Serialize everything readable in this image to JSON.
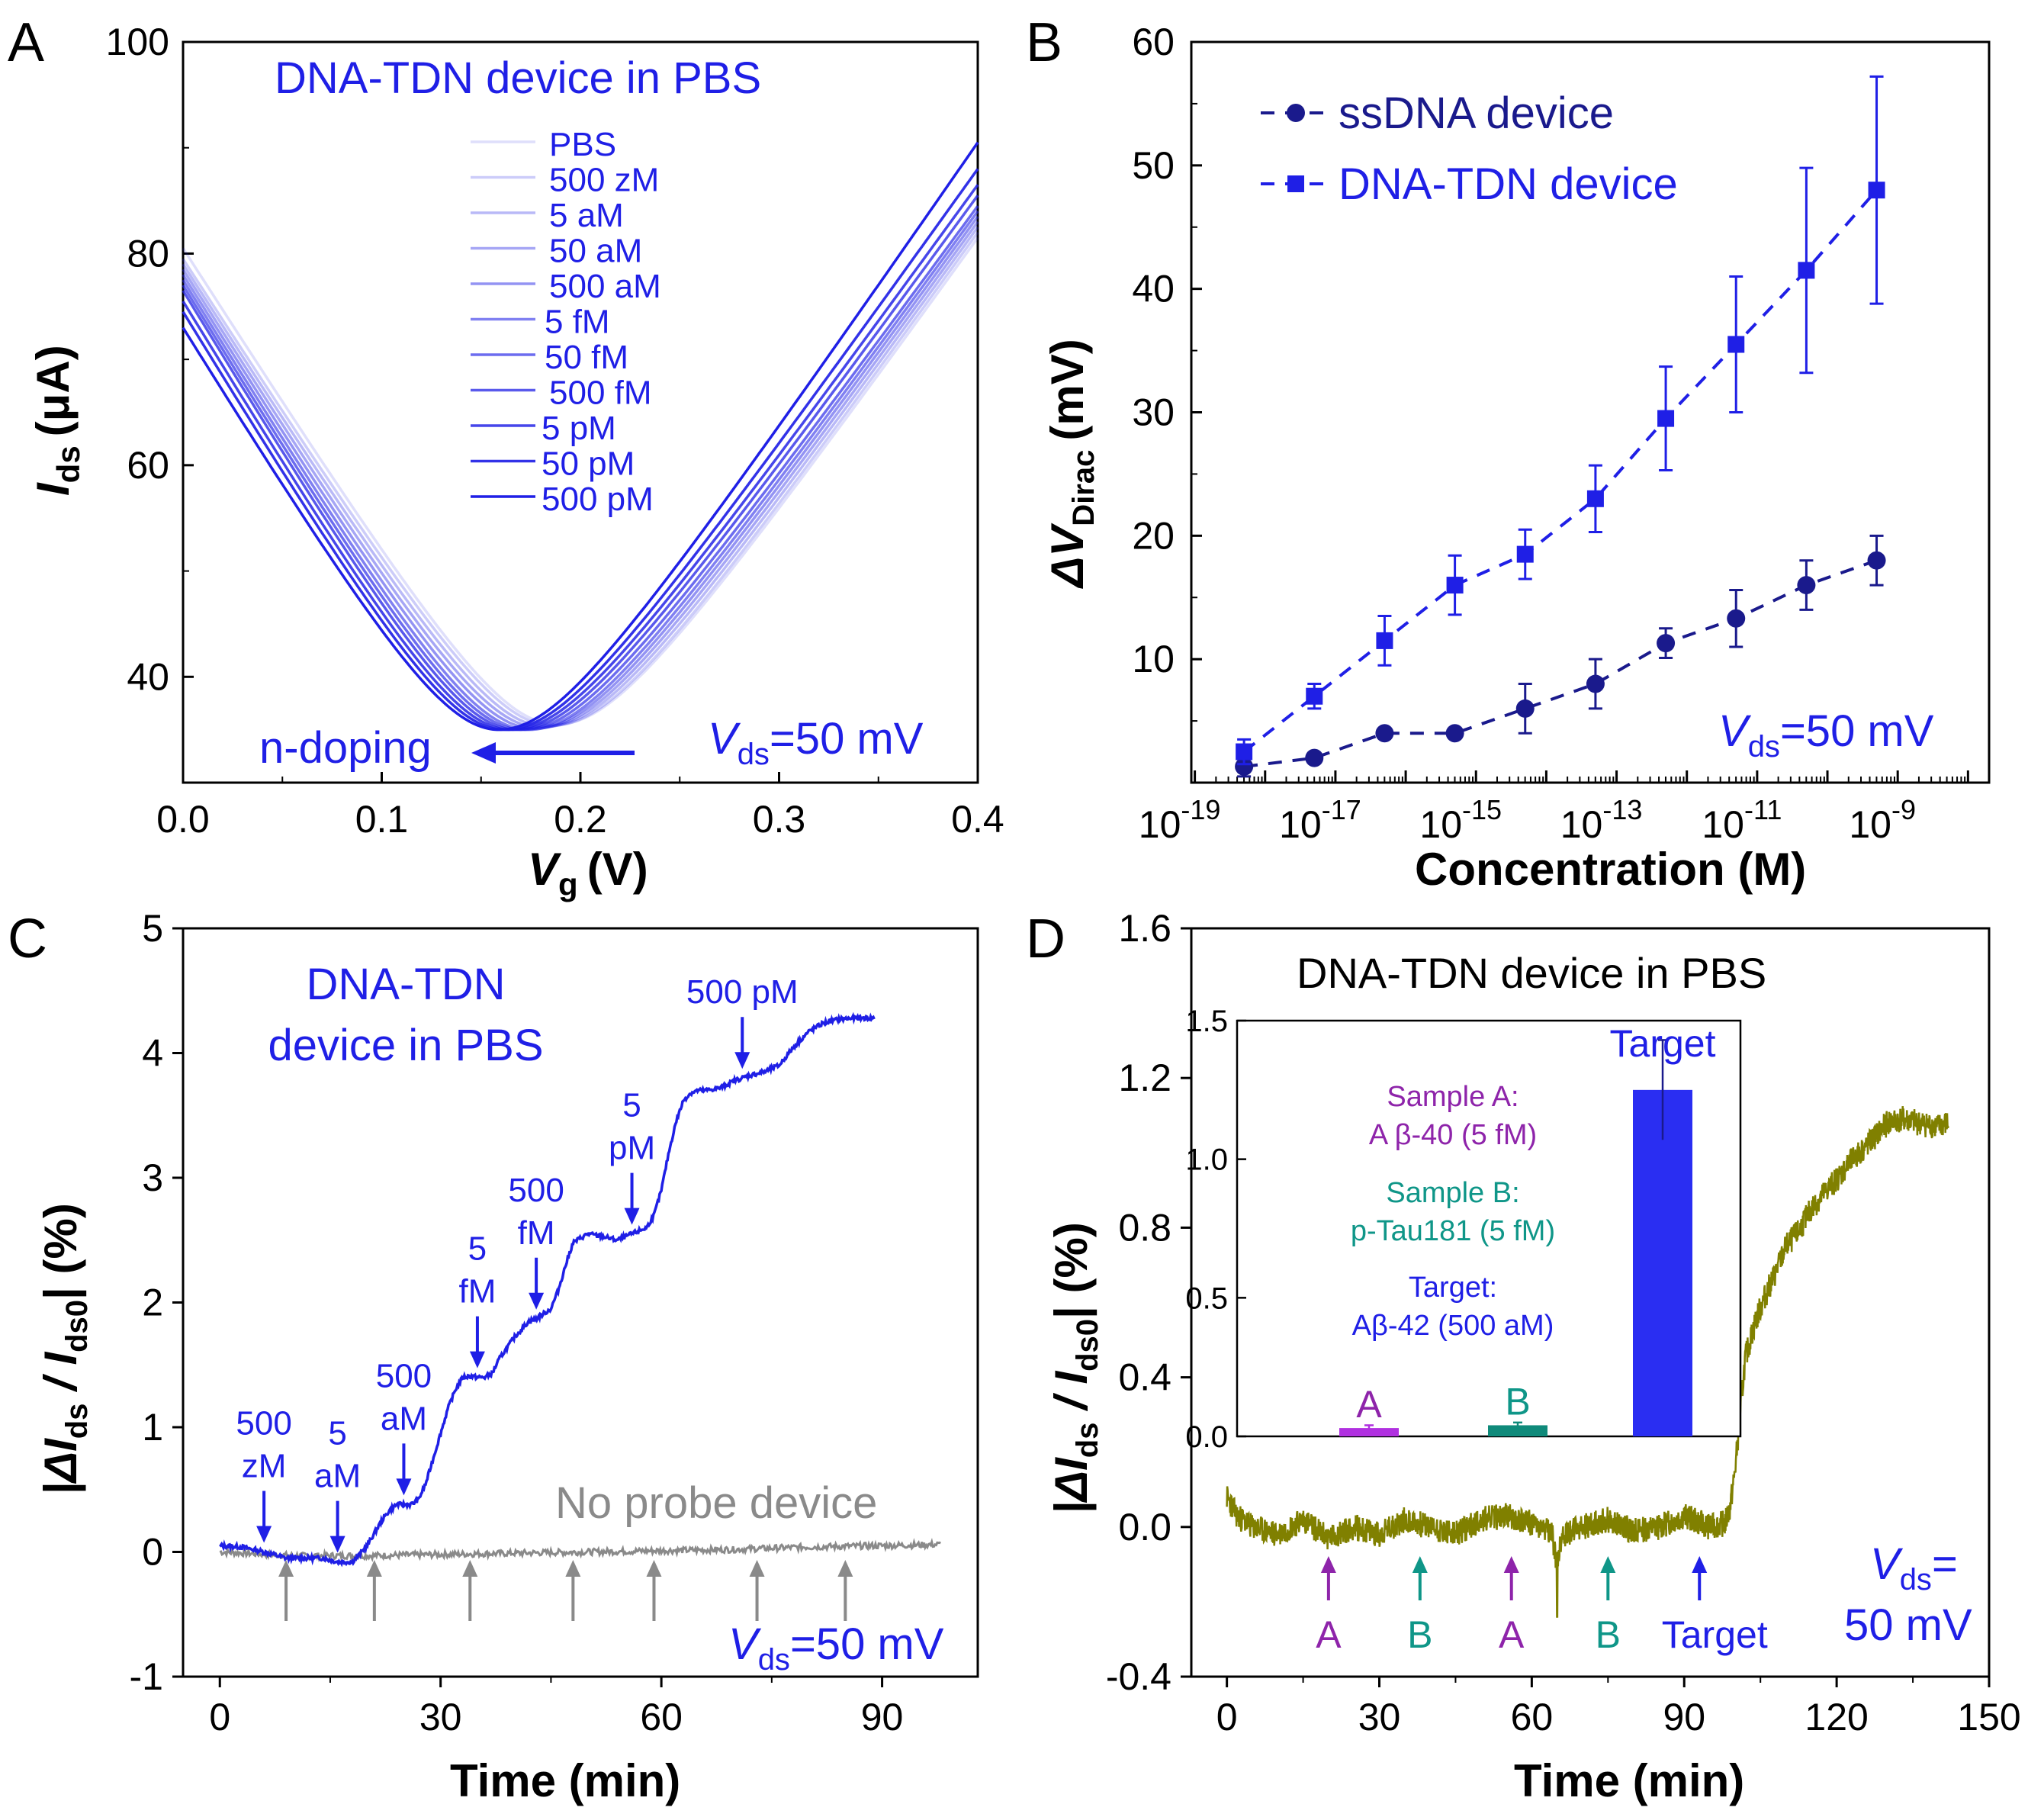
{
  "panels": {
    "A": {
      "letter": "A"
    },
    "B": {
      "letter": "B"
    },
    "C": {
      "letter": "C"
    },
    "D": {
      "letter": "D"
    }
  },
  "colors": {
    "blue": "#1f1fe6",
    "navy": "#1a1a8c",
    "gray": "#8a8a8a",
    "olive": "#808000",
    "purple": "#8e24aa",
    "teal": "#0f9688",
    "bar_a": "#b030e0",
    "bar_b": "#0f8a7a",
    "bar_target": "#2a2ef2"
  },
  "chart_data": [
    {
      "panel": "A",
      "type": "line",
      "title": "DNA-TDN device  in PBS",
      "xlabel": "V",
      "xlabel_sub": "g",
      "xlabel_unit": "(V)",
      "ylabel": "I",
      "ylabel_sub": "ds",
      "ylabel_unit": "(μA)",
      "xlim": [
        0,
        0.4
      ],
      "ylim": [
        30,
        100
      ],
      "xticks": [
        0.0,
        0.1,
        0.2,
        0.3,
        0.4
      ],
      "xtick_labels": [
        "0.0",
        "0.1",
        "0.2",
        "0.3",
        "0.4"
      ],
      "yticks": [
        40,
        60,
        80,
        100
      ],
      "ytick_labels": [
        "40",
        "60",
        "80",
        "100"
      ],
      "annotation_arrow": "n-doping",
      "vds_label": {
        "v": "V",
        "sub": "ds",
        "rest": "=50 mV"
      },
      "legend": [
        "PBS",
        "500 zM",
        "5 aM",
        "50 aM",
        "500 aM",
        "5 fM",
        "50 fM",
        "500 fM",
        "5 pM",
        "50 pM",
        "500 pM"
      ],
      "series": [
        {
          "name": "PBS",
          "dirac_v": 0.188,
          "min_current": 35.5,
          "current_at_0": 80.5,
          "current_at_04": 81.5
        },
        {
          "name": "500 zM",
          "dirac_v": 0.186,
          "min_current": 35.4,
          "current_at_0": 79.5,
          "current_at_04": 82.0
        },
        {
          "name": "5 aM",
          "dirac_v": 0.183,
          "min_current": 35.3,
          "current_at_0": 79.0,
          "current_at_04": 82.5
        },
        {
          "name": "50 aM",
          "dirac_v": 0.18,
          "min_current": 35.2,
          "current_at_0": 78.5,
          "current_at_04": 83.0
        },
        {
          "name": "500 aM",
          "dirac_v": 0.177,
          "min_current": 35.1,
          "current_at_0": 78.0,
          "current_at_04": 83.5
        },
        {
          "name": "5 fM",
          "dirac_v": 0.174,
          "min_current": 35.0,
          "current_at_0": 77.5,
          "current_at_04": 84.0
        },
        {
          "name": "50 fM",
          "dirac_v": 0.171,
          "min_current": 35.0,
          "current_at_0": 77.0,
          "current_at_04": 84.5
        },
        {
          "name": "500 fM",
          "dirac_v": 0.168,
          "min_current": 35.0,
          "current_at_0": 76.5,
          "current_at_04": 85.5
        },
        {
          "name": "5 pM",
          "dirac_v": 0.165,
          "min_current": 35.0,
          "current_at_0": 75.5,
          "current_at_04": 86.5
        },
        {
          "name": "50 pM",
          "dirac_v": 0.162,
          "min_current": 35.0,
          "current_at_0": 74.5,
          "current_at_04": 88.0
        },
        {
          "name": "500 pM",
          "dirac_v": 0.159,
          "min_current": 35.0,
          "current_at_0": 73.0,
          "current_at_04": 90.5
        }
      ]
    },
    {
      "panel": "B",
      "type": "line",
      "xlabel": "Concentration (M)",
      "ylabel": "ΔV",
      "ylabel_sub": "Dirac",
      "ylabel_unit": "(mV)",
      "xscale": "log",
      "xlim_log10": [
        -19,
        -8
      ],
      "ylim": [
        0,
        60
      ],
      "yticks": [
        10,
        20,
        30,
        40,
        50,
        60
      ],
      "ytick_labels": [
        "10",
        "20",
        "30",
        "40",
        "50",
        "60"
      ],
      "xtick_exponents": [
        -19,
        -17,
        -15,
        -13,
        -11,
        -9
      ],
      "xtick_base": "10",
      "xtick_exponent_labels": [
        "-19",
        "-17",
        "-15",
        "-13",
        "-11",
        "-9"
      ],
      "vds_label": {
        "v": "V",
        "sub": "ds",
        "rest": "=50 mV"
      },
      "x_log10": [
        -18.3,
        -17.3,
        -16.3,
        -15.3,
        -14.3,
        -13.3,
        -12.3,
        -11.3,
        -10.3,
        -9.3
      ],
      "series": [
        {
          "name": "ssDNA device",
          "marker": "circle",
          "values": [
            1.3,
            2.0,
            4.0,
            4.0,
            6.0,
            8.0,
            11.3,
            13.3,
            16.0,
            18.0
          ],
          "errors": [
            0.8,
            0.3,
            0.3,
            0.3,
            2.0,
            2.0,
            1.2,
            2.3,
            2.0,
            2.0
          ]
        },
        {
          "name": "DNA-TDN device",
          "marker": "square",
          "values": [
            2.5,
            7.0,
            11.5,
            16.0,
            18.5,
            23.0,
            29.5,
            35.5,
            41.5,
            48.0
          ],
          "errors": [
            1.0,
            1.0,
            2.0,
            2.4,
            2.0,
            2.7,
            4.2,
            5.5,
            8.3,
            9.2
          ]
        }
      ]
    },
    {
      "panel": "C",
      "type": "line",
      "title_lines": [
        "DNA-TDN",
        "device in PBS"
      ],
      "xlabel": "Time (min)",
      "ylabel_parts": [
        "|ΔI",
        "ds",
        " / I",
        "ds0",
        "| (%)"
      ],
      "xlim": [
        -5,
        103
      ],
      "ylim": [
        -1,
        5
      ],
      "xticks": [
        0,
        30,
        60,
        90
      ],
      "xtick_labels": [
        "0",
        "30",
        "60",
        "90"
      ],
      "yticks": [
        -1,
        0,
        1,
        2,
        3,
        4,
        5
      ],
      "ytick_labels": [
        "-1",
        "0",
        "1",
        "2",
        "3",
        "4",
        "5"
      ],
      "vds_label": {
        "v": "V",
        "sub": "ds",
        "rest": "=50 mV"
      },
      "no_probe_label": "No probe device",
      "series": [
        {
          "name": "DNA-TDN device",
          "x": [
            0,
            3,
            6,
            9,
            12,
            14,
            16,
            18,
            19,
            20,
            21,
            22,
            23,
            24,
            25,
            26,
            27,
            28,
            29,
            30,
            31,
            32,
            33,
            34,
            35,
            36,
            37,
            38,
            40,
            42,
            43,
            45,
            46,
            47,
            48,
            50,
            52,
            54,
            56,
            58,
            59,
            60,
            61,
            62,
            63,
            64,
            65,
            66,
            68,
            70,
            72,
            74,
            76,
            78,
            80,
            82,
            84,
            86,
            88,
            89
          ],
          "y": [
            0.05,
            0.04,
            0.0,
            -0.05,
            -0.05,
            -0.05,
            -0.08,
            -0.08,
            -0.02,
            0.05,
            0.15,
            0.25,
            0.33,
            0.38,
            0.38,
            0.38,
            0.42,
            0.55,
            0.75,
            0.95,
            1.15,
            1.3,
            1.4,
            1.41,
            1.4,
            1.4,
            1.43,
            1.55,
            1.72,
            1.85,
            1.87,
            1.95,
            2.1,
            2.3,
            2.48,
            2.55,
            2.53,
            2.5,
            2.55,
            2.6,
            2.7,
            2.9,
            3.2,
            3.45,
            3.62,
            3.68,
            3.7,
            3.7,
            3.72,
            3.78,
            3.82,
            3.85,
            3.9,
            4.05,
            4.17,
            4.24,
            4.27,
            4.28,
            4.28,
            4.28
          ]
        },
        {
          "name": "No probe device",
          "x": [
            0,
            10,
            20,
            30,
            40,
            50,
            60,
            70,
            80,
            90,
            98
          ],
          "y": [
            0.0,
            -0.03,
            -0.03,
            -0.02,
            -0.01,
            0.0,
            0.01,
            0.02,
            0.04,
            0.05,
            0.06
          ]
        }
      ],
      "blue_arrows": [
        {
          "x": 6,
          "label_lines": [
            "500",
            "zM"
          ]
        },
        {
          "x": 16,
          "label_lines": [
            "5",
            "aM"
          ]
        },
        {
          "x": 25,
          "label_lines": [
            "500",
            "aM"
          ]
        },
        {
          "x": 35,
          "label_lines": [
            "5",
            "fM"
          ]
        },
        {
          "x": 43,
          "label_lines": [
            "500",
            "fM"
          ]
        },
        {
          "x": 56,
          "label_lines": [
            "5",
            "pM"
          ]
        },
        {
          "x": 71,
          "label_lines": [
            "500 pM"
          ]
        }
      ],
      "gray_arrows_x": [
        9,
        21,
        34,
        48,
        59,
        73,
        85
      ]
    },
    {
      "panel": "D",
      "type": "line",
      "title": "DNA-TDN device in PBS",
      "xlabel": "Time (min)",
      "ylabel_parts": [
        "|ΔI",
        "ds",
        " / I",
        "ds0",
        "| (%)"
      ],
      "xlim": [
        -7,
        150
      ],
      "ylim": [
        -0.4,
        1.6
      ],
      "xticks": [
        0,
        30,
        60,
        90,
        120,
        150
      ],
      "xtick_labels": [
        "0",
        "30",
        "60",
        "90",
        "120",
        "150"
      ],
      "yticks": [
        -0.4,
        0.0,
        0.4,
        0.8,
        1.2,
        1.6
      ],
      "ytick_labels": [
        "-0.4",
        "0.0",
        "0.4",
        "0.8",
        "1.2",
        "1.6"
      ],
      "vds_lines": {
        "v": "V",
        "sub": "ds",
        "rest": "=",
        "line2": "50 mV"
      },
      "series": [
        {
          "name": "response",
          "x": [
            0,
            2,
            5,
            10,
            15,
            20,
            25,
            30,
            35,
            40,
            45,
            50,
            55,
            60,
            64,
            65,
            66,
            70,
            75,
            80,
            85,
            90,
            95,
            98,
            99,
            100,
            101,
            102,
            104,
            106,
            108,
            110,
            112,
            115,
            118,
            120,
            123,
            126,
            128,
            130,
            133,
            136,
            140,
            142
          ],
          "y": [
            0.08,
            0.03,
            0.0,
            -0.02,
            0.02,
            -0.03,
            0.0,
            -0.02,
            0.02,
            0.0,
            -0.02,
            0.02,
            0.03,
            0.01,
            -0.02,
            -0.1,
            -0.02,
            0.0,
            0.02,
            -0.01,
            0.0,
            0.03,
            0.0,
            0.01,
            0.05,
            0.15,
            0.3,
            0.45,
            0.55,
            0.62,
            0.68,
            0.75,
            0.78,
            0.85,
            0.9,
            0.93,
            0.98,
            1.02,
            1.05,
            1.08,
            1.09,
            1.08,
            1.07,
            1.08
          ]
        }
      ],
      "arrows": [
        {
          "x": 20,
          "label": "A",
          "color": "purple"
        },
        {
          "x": 38,
          "label": "B",
          "color": "teal"
        },
        {
          "x": 56,
          "label": "A",
          "color": "purple"
        },
        {
          "x": 75,
          "label": "B",
          "color": "teal"
        },
        {
          "x": 93,
          "label": "Target",
          "color": "blue"
        }
      ],
      "inset": {
        "type": "bar",
        "ylim": [
          0,
          1.5
        ],
        "yticks": [
          0.0,
          0.5,
          1.0,
          1.5
        ],
        "ytick_labels": [
          "0.0",
          "0.5",
          "1.0",
          "1.5"
        ],
        "categories": [
          "A",
          "B",
          "Target"
        ],
        "values": [
          0.03,
          0.04,
          1.25
        ],
        "errors": [
          0.01,
          0.01,
          0.18
        ],
        "text_blocks": [
          {
            "lines": [
              "Sample A:",
              "A β-40 (5 fM)"
            ],
            "color": "purple"
          },
          {
            "lines": [
              "Sample B:",
              "p-Tau181 (5 fM)"
            ],
            "color": "teal"
          },
          {
            "lines": [
              "Target:",
              "Aβ-42 (500 aM)"
            ],
            "color": "blue"
          }
        ]
      }
    }
  ]
}
